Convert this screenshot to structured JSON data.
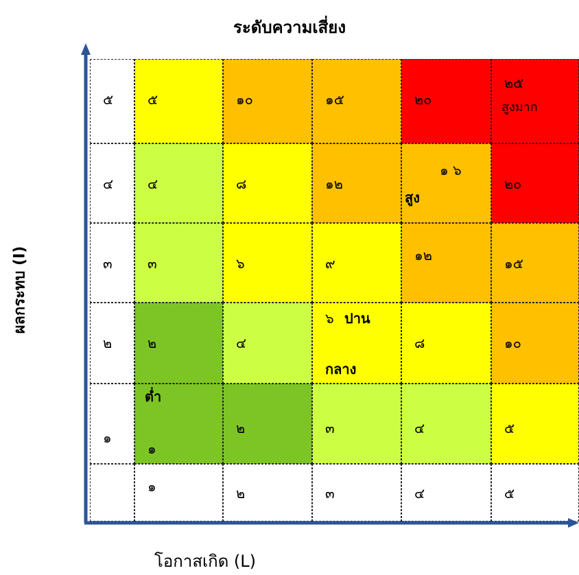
{
  "chart_data": {
    "type": "heatmap",
    "title": "ระดับความเสี่ยง",
    "xlabel": "โอกาสเกิด (L)",
    "ylabel": "ผลกระทบ (I)",
    "x_ticks": [
      "๑",
      "๒",
      "๓",
      "๔",
      "๕"
    ],
    "y_ticks": [
      "๕",
      "๔",
      "๓",
      "๒",
      "๑"
    ],
    "rows": [
      [
        "๕",
        "๑๐",
        "๑๕",
        "๒๐",
        "๒๕"
      ],
      [
        "๔",
        "๘",
        "๑๒",
        "๑ ๖",
        "๒๐"
      ],
      [
        "๓",
        "๖",
        "๙",
        "๑๒",
        "๑๕"
      ],
      [
        "๒",
        "๔",
        "๖",
        "๘",
        "๑๐"
      ],
      [
        "๑",
        "๒",
        "๓",
        "๔",
        "๕"
      ]
    ],
    "colors": [
      [
        "#FFFF00",
        "#FFC000",
        "#FFC000",
        "#FF0000",
        "#FF0000"
      ],
      [
        "#CCFF44",
        "#FFFF00",
        "#FFC000",
        "#FFC000",
        "#FF0000"
      ],
      [
        "#CCFF44",
        "#FFFF00",
        "#FFFF00",
        "#FFC000",
        "#FFC000"
      ],
      [
        "#7DC524",
        "#CCFF44",
        "#FFFF00",
        "#FFFF00",
        "#FFC000"
      ],
      [
        "#7DC524",
        "#7DC524",
        "#CCFF44",
        "#CCFF44",
        "#FFFF00"
      ]
    ],
    "level_labels": {
      "very_high": "สูงมาก",
      "high": "สูง",
      "medium_a": "ปาน",
      "medium_b": "กลาง",
      "low": "ต่ำ"
    },
    "axis_color": "#2B5597"
  }
}
